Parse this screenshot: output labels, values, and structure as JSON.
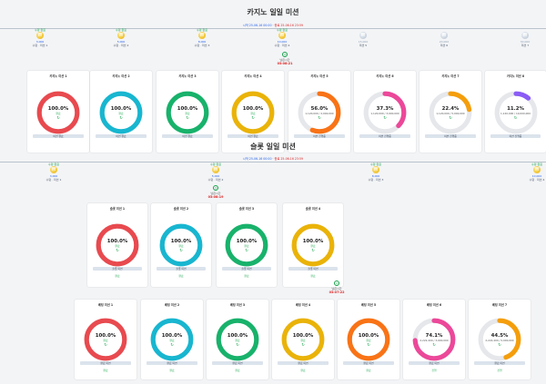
{
  "casino": {
    "title": "카지노 일일 미션",
    "period_start": "시작 25-06-16 00:00",
    "period_end": "종료 25-06-16 23:59",
    "steps": [
      {
        "badge": "수령 완료",
        "amount": "3,000",
        "label": "수령 · 미션 1",
        "achieved": true
      },
      {
        "badge": "수령 완료",
        "amount": "5,000",
        "label": "수령 · 미션 2",
        "achieved": true
      },
      {
        "badge": "수령 완료",
        "amount": "8,000",
        "label": "수령 · 미션 3",
        "achieved": true
      },
      {
        "badge": "수령 완료",
        "amount": "10,000",
        "label": "수령 · 미션 4",
        "achieved": true
      },
      {
        "badge": "",
        "amount": "15,000",
        "label": "미션 5",
        "achieved": false
      },
      {
        "badge": "",
        "amount": "20,000",
        "label": "미션 6",
        "achieved": false
      },
      {
        "badge": "",
        "amount": "30,000",
        "label": "미션 7",
        "achieved": false
      },
      {
        "badge": "",
        "amount": "50,000",
        "label": "미션 8",
        "achieved": false
      }
    ],
    "timer": {
      "label": "남은시간",
      "value": "03:08:21"
    },
    "cards": [
      {
        "title": "카지노 미션 1",
        "percent": 100,
        "percent_text": "100.0%",
        "status": "완료",
        "button": "미션 완료",
        "color": "#e84a4f"
      },
      {
        "title": "카지노 미션 2",
        "percent": 100,
        "percent_text": "100.0%",
        "status": "완료",
        "button": "미션 완료",
        "color": "#18b6d0"
      },
      {
        "title": "카지노 미션 3",
        "percent": 100,
        "percent_text": "100.0%",
        "status": "완료",
        "button": "미션 완료",
        "color": "#18b26b"
      },
      {
        "title": "카지노 미션 4",
        "percent": 100,
        "percent_text": "100.0%",
        "status": "완료",
        "button": "미션 완료",
        "color": "#eab308"
      },
      {
        "title": "카지노 미션 5",
        "percent": 56.0,
        "percent_text": "56.0%",
        "status": "1,120,000 / 2,000,000",
        "button": "미션 진행중",
        "color": "#f97316"
      },
      {
        "title": "카지노 미션 6",
        "percent": 37.3,
        "percent_text": "37.3%",
        "status": "1,120,000 / 3,000,000",
        "button": "미션 진행중",
        "color": "#ec4899"
      },
      {
        "title": "카지노 미션 7",
        "percent": 22.4,
        "percent_text": "22.4%",
        "status": "1,120,000 / 5,000,000",
        "button": "미션 진행중",
        "color": "#f59e0b"
      },
      {
        "title": "카지노 미션 8",
        "percent": 11.2,
        "percent_text": "11.2%",
        "status": "1,120,000 / 10,000,000",
        "button": "미션 진행중",
        "color": "#8b5cf6"
      }
    ]
  },
  "slot": {
    "title": "슬롯 일일 미션",
    "period_start": "시작 25-06-16 00:00",
    "period_end": "종료 25-06-16 23:59",
    "steps": [
      {
        "badge": "수령 완료",
        "amount": "3,000",
        "label": "수령 · 미션 1",
        "achieved": true
      },
      {
        "badge": "수령 완료",
        "amount": "5,000",
        "label": "수령 · 미션 2",
        "achieved": true
      },
      {
        "badge": "수령 완료",
        "amount": "8,000",
        "label": "수령 · 미션 3",
        "achieved": true
      },
      {
        "badge": "수령 완료",
        "amount": "10,000",
        "label": "수령 · 미션 4",
        "achieved": true
      }
    ],
    "timer": {
      "label": "남은시간",
      "value": "03:08:19"
    },
    "cards": [
      {
        "title": "슬롯 미션 1",
        "percent": 100,
        "percent_text": "100.0%",
        "status": "완료",
        "button": "슬롯 미션",
        "done": "완료",
        "color": "#e84a4f"
      },
      {
        "title": "슬롯 미션 2",
        "percent": 100,
        "percent_text": "100.0%",
        "status": "완료",
        "button": "슬롯 미션",
        "done": "완료",
        "color": "#18b6d0"
      },
      {
        "title": "슬롯 미션 3",
        "percent": 100,
        "percent_text": "100.0%",
        "status": "완료",
        "button": "슬롯 미션",
        "done": "완료",
        "color": "#18b26b"
      },
      {
        "title": "슬롯 미션 4",
        "percent": 100,
        "percent_text": "100.0%",
        "status": "완료",
        "button": "슬롯 미션",
        "done": "완료",
        "color": "#eab308"
      }
    ]
  },
  "sports": {
    "timer": {
      "label": "남은시간",
      "value": "03:07:22"
    },
    "cards": [
      {
        "title": "베팅 미션 1",
        "percent": 100,
        "percent_text": "100.0%",
        "status": "완료",
        "button": "완료 미션",
        "done": "완료",
        "color": "#e84a4f"
      },
      {
        "title": "베팅 미션 2",
        "percent": 100,
        "percent_text": "100.0%",
        "status": "완료",
        "button": "완료 미션",
        "done": "완료",
        "color": "#18b6d0"
      },
      {
        "title": "베팅 미션 3",
        "percent": 100,
        "percent_text": "100.0%",
        "status": "완료",
        "button": "완료 미션",
        "done": "완료",
        "color": "#18b26b"
      },
      {
        "title": "베팅 미션 4",
        "percent": 100,
        "percent_text": "100.0%",
        "status": "완료",
        "button": "완료 미션",
        "done": "완료",
        "color": "#eab308"
      },
      {
        "title": "베팅 미션 5",
        "percent": 100,
        "percent_text": "100.0%",
        "status": "완료",
        "button": "완료 미션",
        "done": "완료",
        "color": "#f97316"
      },
      {
        "title": "베팅 미션 6",
        "percent": 74.1,
        "percent_text": "74.1%",
        "status": "2,222,400 / 3,000,000",
        "button": "완료 미션",
        "done": "진행",
        "color": "#ec4899"
      },
      {
        "title": "베팅 미션 7",
        "percent": 44.5,
        "percent_text": "44.5%",
        "status": "2,222,400 / 5,000,000",
        "button": "완료 미션",
        "done": "진행",
        "color": "#f59e0b"
      }
    ]
  }
}
